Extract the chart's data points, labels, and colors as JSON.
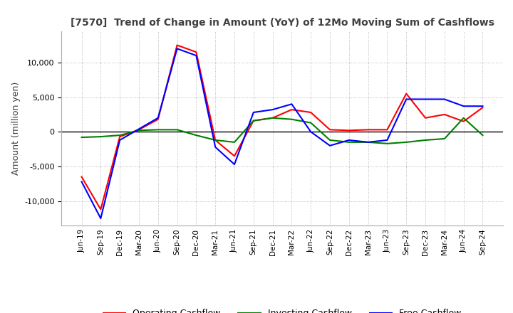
{
  "title": "[7570]  Trend of Change in Amount (YoY) of 12Mo Moving Sum of Cashflows",
  "ylabel": "Amount (million yen)",
  "x_labels": [
    "Jun-19",
    "Sep-19",
    "Dec-19",
    "Mar-20",
    "Jun-20",
    "Sep-20",
    "Dec-20",
    "Mar-21",
    "Jun-21",
    "Sep-21",
    "Dec-21",
    "Mar-22",
    "Jun-22",
    "Sep-22",
    "Dec-22",
    "Mar-23",
    "Jun-23",
    "Sep-23",
    "Dec-23",
    "Mar-24",
    "Jun-24",
    "Sep-24"
  ],
  "operating": [
    -6500,
    -11200,
    -700,
    300,
    1800,
    12500,
    11500,
    -1200,
    -3500,
    1600,
    2000,
    3200,
    2800,
    300,
    200,
    300,
    300,
    5500,
    2000,
    2500,
    1500,
    3500
  ],
  "investing": [
    -800,
    -700,
    -500,
    200,
    300,
    300,
    -500,
    -1200,
    -1500,
    1600,
    2000,
    1800,
    1300,
    -1200,
    -1500,
    -1500,
    -1700,
    -1500,
    -1200,
    -1000,
    2000,
    -500
  ],
  "free": [
    -7200,
    -12500,
    -1200,
    400,
    2000,
    12000,
    11000,
    -2200,
    -4700,
    2800,
    3200,
    4000,
    0,
    -2000,
    -1200,
    -1500,
    -1200,
    4700,
    4700,
    4700,
    3700,
    3700
  ],
  "operating_color": "#ff0000",
  "investing_color": "#008000",
  "free_color": "#0000ff",
  "ylim": [
    -13500,
    14500
  ],
  "yticks": [
    -10000,
    -5000,
    0,
    5000,
    10000
  ],
  "background_color": "#ffffff",
  "grid_color": "#aaaaaa",
  "title_color": "#404040"
}
